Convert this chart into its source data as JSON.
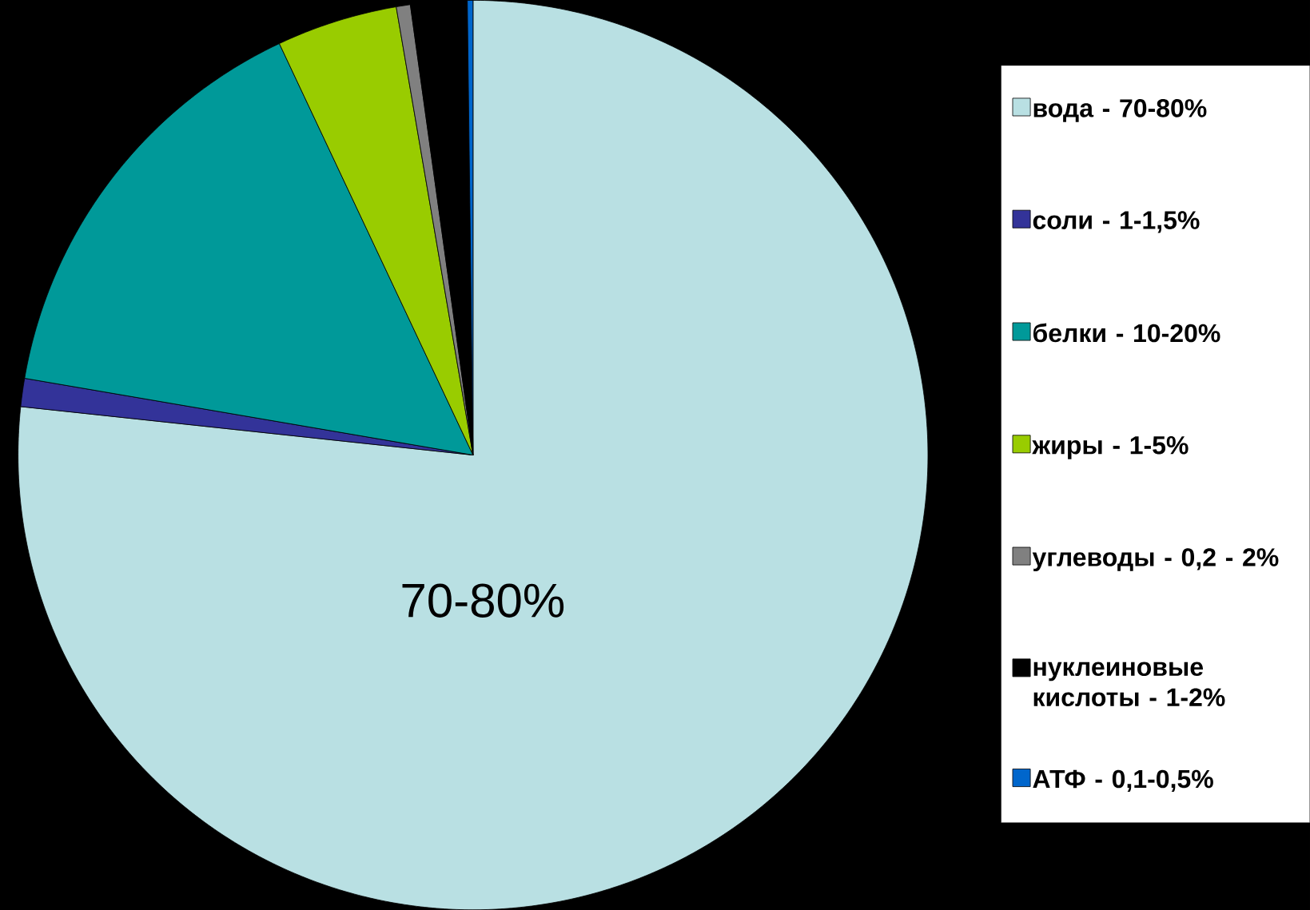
{
  "chart_data": {
    "type": "pie",
    "categories": [
      "вода - 70-80%",
      "соли - 1-1,5%",
      "белки - 10-20%",
      "жиры - 1-5%",
      "углеводы - 0,2 - 2%",
      "нуклеиновые кислоты - 1-2%",
      "АТФ - 0,1-0,5%"
    ],
    "values": [
      76.7,
      1,
      15.3,
      4.3,
      0.5,
      2,
      0.2
    ],
    "colors": [
      "#b9e0e3",
      "#333399",
      "#009999",
      "#99cc00",
      "#808080",
      "#000000",
      "#0066cc"
    ],
    "annotations": [
      "70-80%"
    ],
    "legend": "right"
  }
}
